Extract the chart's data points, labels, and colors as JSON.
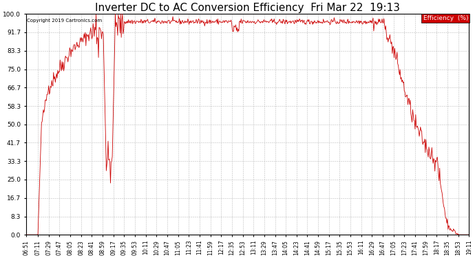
{
  "title": "Inverter DC to AC Conversion Efficiency  Fri Mar 22  19:13",
  "copyright": "Copyright 2019 Cartronics.com",
  "legend_label": "Efficiency  (%)",
  "legend_bg": "#cc0000",
  "legend_fg": "#ffffff",
  "line_color": "#cc0000",
  "bg_color": "#ffffff",
  "grid_color": "#bbbbbb",
  "yticks": [
    0.0,
    8.3,
    16.7,
    25.0,
    33.3,
    41.7,
    50.0,
    58.3,
    66.7,
    75.0,
    83.3,
    91.7,
    100.0
  ],
  "ylim": [
    0,
    100
  ],
  "xlabel_fontsize": 5.5,
  "ylabel_fontsize": 6.5,
  "title_fontsize": 11,
  "xtick_labels": [
    "06:51",
    "07:11",
    "07:29",
    "07:47",
    "08:05",
    "08:23",
    "08:41",
    "08:59",
    "09:17",
    "09:35",
    "09:53",
    "10:11",
    "10:29",
    "10:47",
    "11:05",
    "11:23",
    "11:41",
    "11:59",
    "12:17",
    "12:35",
    "12:53",
    "13:11",
    "13:29",
    "13:47",
    "14:05",
    "14:23",
    "14:41",
    "14:59",
    "15:17",
    "15:35",
    "15:53",
    "16:11",
    "16:29",
    "16:47",
    "17:05",
    "17:23",
    "17:41",
    "17:59",
    "18:17",
    "18:35",
    "18:53",
    "19:11"
  ]
}
